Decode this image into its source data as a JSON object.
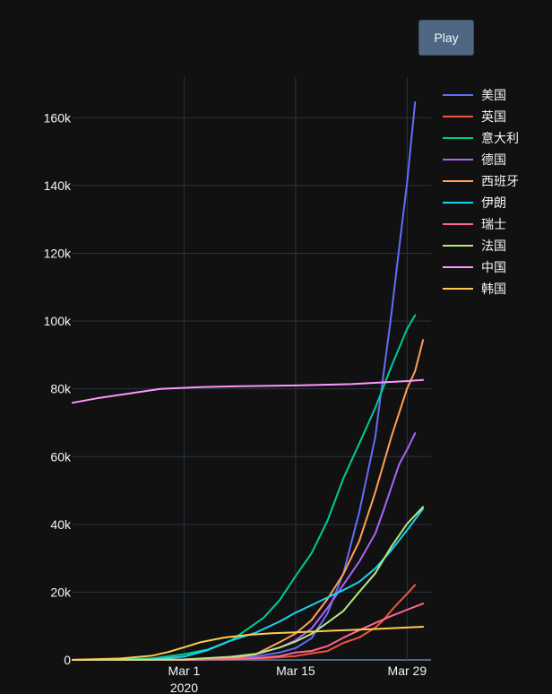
{
  "controls": {
    "play_label": "Play"
  },
  "chart_data": {
    "type": "line",
    "title": "",
    "xlabel": "",
    "ylabel": "",
    "x_range": [
      "2020-02-16",
      "2020-04-01"
    ],
    "ylim": [
      0,
      172000
    ],
    "x_ticks": [
      {
        "date": "2020-03-01",
        "label": "Mar 1",
        "sublabel": "2020"
      },
      {
        "date": "2020-03-15",
        "label": "Mar 15",
        "sublabel": ""
      },
      {
        "date": "2020-03-29",
        "label": "Mar 29",
        "sublabel": ""
      }
    ],
    "y_ticks": [
      {
        "value": 0,
        "label": "0"
      },
      {
        "value": 20000,
        "label": "20k"
      },
      {
        "value": 40000,
        "label": "40k"
      },
      {
        "value": 60000,
        "label": "60k"
      },
      {
        "value": 80000,
        "label": "80k"
      },
      {
        "value": 100000,
        "label": "100k"
      },
      {
        "value": 120000,
        "label": "120k"
      },
      {
        "value": 140000,
        "label": "140k"
      },
      {
        "value": 160000,
        "label": "160k"
      }
    ],
    "grid": true,
    "legend_position": "right",
    "series": [
      {
        "name": "美国",
        "color": "#636efa",
        "points": [
          [
            "2020-02-16",
            15
          ],
          [
            "2020-03-01",
            75
          ],
          [
            "2020-03-07",
            430
          ],
          [
            "2020-03-10",
            990
          ],
          [
            "2020-03-13",
            2200
          ],
          [
            "2020-03-15",
            3500
          ],
          [
            "2020-03-17",
            6400
          ],
          [
            "2020-03-19",
            13700
          ],
          [
            "2020-03-21",
            25500
          ],
          [
            "2020-03-23",
            43700
          ],
          [
            "2020-03-25",
            65800
          ],
          [
            "2020-03-26",
            83800
          ],
          [
            "2020-03-27",
            101700
          ],
          [
            "2020-03-28",
            121500
          ],
          [
            "2020-03-29",
            140900
          ],
          [
            "2020-03-30",
            164600
          ]
        ]
      },
      {
        "name": "英国",
        "color": "#ef553b",
        "points": [
          [
            "2020-02-16",
            9
          ],
          [
            "2020-03-01",
            36
          ],
          [
            "2020-03-07",
            206
          ],
          [
            "2020-03-10",
            382
          ],
          [
            "2020-03-13",
            798
          ],
          [
            "2020-03-15",
            1143
          ],
          [
            "2020-03-17",
            1950
          ],
          [
            "2020-03-19",
            2630
          ],
          [
            "2020-03-21",
            5018
          ],
          [
            "2020-03-23",
            6650
          ],
          [
            "2020-03-25",
            9529
          ],
          [
            "2020-03-26",
            11658
          ],
          [
            "2020-03-27",
            14543
          ],
          [
            "2020-03-28",
            17089
          ],
          [
            "2020-03-29",
            19522
          ],
          [
            "2020-03-30",
            22141
          ]
        ]
      },
      {
        "name": "意大利",
        "color": "#00cc96",
        "points": [
          [
            "2020-02-16",
            3
          ],
          [
            "2020-02-22",
            62
          ],
          [
            "2020-02-26",
            453
          ],
          [
            "2020-03-01",
            1694
          ],
          [
            "2020-03-04",
            3089
          ],
          [
            "2020-03-07",
            5883
          ],
          [
            "2020-03-09",
            9172
          ],
          [
            "2020-03-11",
            12462
          ],
          [
            "2020-03-13",
            17660
          ],
          [
            "2020-03-15",
            24747
          ],
          [
            "2020-03-17",
            31506
          ],
          [
            "2020-03-19",
            41035
          ],
          [
            "2020-03-21",
            53578
          ],
          [
            "2020-03-23",
            63927
          ],
          [
            "2020-03-25",
            74386
          ],
          [
            "2020-03-27",
            86498
          ],
          [
            "2020-03-29",
            97689
          ],
          [
            "2020-03-30",
            101739
          ]
        ]
      },
      {
        "name": "德国",
        "color": "#ab63fa",
        "points": [
          [
            "2020-02-16",
            16
          ],
          [
            "2020-03-01",
            130
          ],
          [
            "2020-03-07",
            800
          ],
          [
            "2020-03-10",
            1565
          ],
          [
            "2020-03-13",
            3675
          ],
          [
            "2020-03-15",
            5795
          ],
          [
            "2020-03-17",
            9257
          ],
          [
            "2020-03-19",
            15320
          ],
          [
            "2020-03-21",
            22213
          ],
          [
            "2020-03-23",
            29056
          ],
          [
            "2020-03-25",
            37323
          ],
          [
            "2020-03-26",
            43938
          ],
          [
            "2020-03-27",
            50871
          ],
          [
            "2020-03-28",
            57695
          ],
          [
            "2020-03-29",
            62095
          ],
          [
            "2020-03-30",
            66885
          ]
        ]
      },
      {
        "name": "西班牙",
        "color": "#ffa15a",
        "points": [
          [
            "2020-02-16",
            2
          ],
          [
            "2020-03-01",
            84
          ],
          [
            "2020-03-07",
            500
          ],
          [
            "2020-03-10",
            1695
          ],
          [
            "2020-03-13",
            5232
          ],
          [
            "2020-03-15",
            7798
          ],
          [
            "2020-03-17",
            11748
          ],
          [
            "2020-03-19",
            17963
          ],
          [
            "2020-03-21",
            25374
          ],
          [
            "2020-03-23",
            35136
          ],
          [
            "2020-03-25",
            49515
          ],
          [
            "2020-03-27",
            65719
          ],
          [
            "2020-03-29",
            80110
          ],
          [
            "2020-03-30",
            85195
          ],
          [
            "2020-03-31",
            94417
          ]
        ]
      },
      {
        "name": "伊朗",
        "color": "#19d3f3",
        "points": [
          [
            "2020-02-16",
            0
          ],
          [
            "2020-02-20",
            5
          ],
          [
            "2020-02-26",
            139
          ],
          [
            "2020-03-01",
            978
          ],
          [
            "2020-03-04",
            2922
          ],
          [
            "2020-03-07",
            5823
          ],
          [
            "2020-03-10",
            8042
          ],
          [
            "2020-03-13",
            11364
          ],
          [
            "2020-03-15",
            13938
          ],
          [
            "2020-03-17",
            16169
          ],
          [
            "2020-03-19",
            18407
          ],
          [
            "2020-03-21",
            20610
          ],
          [
            "2020-03-23",
            23049
          ],
          [
            "2020-03-25",
            27017
          ],
          [
            "2020-03-27",
            32332
          ],
          [
            "2020-03-29",
            38309
          ],
          [
            "2020-03-31",
            44605
          ]
        ]
      },
      {
        "name": "瑞士",
        "color": "#ff6692",
        "points": [
          [
            "2020-02-16",
            0
          ],
          [
            "2020-03-01",
            27
          ],
          [
            "2020-03-07",
            268
          ],
          [
            "2020-03-10",
            491
          ],
          [
            "2020-03-13",
            1139
          ],
          [
            "2020-03-15",
            2200
          ],
          [
            "2020-03-17",
            2650
          ],
          [
            "2020-03-19",
            4075
          ],
          [
            "2020-03-21",
            6575
          ],
          [
            "2020-03-23",
            8795
          ],
          [
            "2020-03-25",
            10897
          ],
          [
            "2020-03-27",
            12928
          ],
          [
            "2020-03-29",
            14829
          ],
          [
            "2020-03-31",
            16605
          ]
        ]
      },
      {
        "name": "法国",
        "color": "#b6e880",
        "points": [
          [
            "2020-02-16",
            12
          ],
          [
            "2020-03-01",
            130
          ],
          [
            "2020-03-07",
            949
          ],
          [
            "2020-03-10",
            1784
          ],
          [
            "2020-03-13",
            3661
          ],
          [
            "2020-03-15",
            5423
          ],
          [
            "2020-03-17",
            7699
          ],
          [
            "2020-03-19",
            10995
          ],
          [
            "2020-03-21",
            14459
          ],
          [
            "2020-03-23",
            20123
          ],
          [
            "2020-03-25",
            25600
          ],
          [
            "2020-03-27",
            33402
          ],
          [
            "2020-03-29",
            40174
          ],
          [
            "2020-03-31",
            45170
          ]
        ]
      },
      {
        "name": "中国",
        "color": "#ff97ff",
        "points": [
          [
            "2020-02-16",
            75900
          ],
          [
            "2020-02-19",
            77200
          ],
          [
            "2020-02-23",
            78600
          ],
          [
            "2020-02-27",
            80000
          ],
          [
            "2020-03-03",
            80500
          ],
          [
            "2020-03-08",
            80800
          ],
          [
            "2020-03-15",
            81000
          ],
          [
            "2020-03-22",
            81400
          ],
          [
            "2020-03-29",
            82300
          ],
          [
            "2020-03-31",
            82600
          ]
        ]
      },
      {
        "name": "韩国",
        "color": "#fecb52",
        "points": [
          [
            "2020-02-16",
            29
          ],
          [
            "2020-02-22",
            433
          ],
          [
            "2020-02-24",
            833
          ],
          [
            "2020-02-26",
            1261
          ],
          [
            "2020-02-28",
            2337
          ],
          [
            "2020-03-01",
            3736
          ],
          [
            "2020-03-03",
            5186
          ],
          [
            "2020-03-06",
            6593
          ],
          [
            "2020-03-09",
            7382
          ],
          [
            "2020-03-12",
            7869
          ],
          [
            "2020-03-15",
            8162
          ],
          [
            "2020-03-20",
            8652
          ],
          [
            "2020-03-25",
            9137
          ],
          [
            "2020-03-31",
            9786
          ]
        ]
      }
    ]
  }
}
